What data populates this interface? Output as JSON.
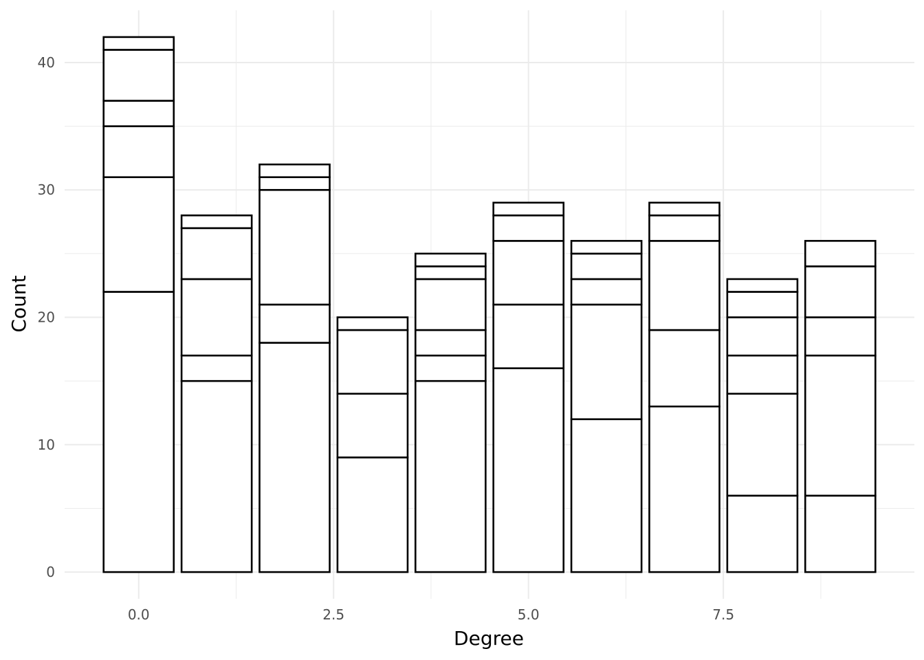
{
  "chart_data": {
    "type": "bar",
    "stacked": true,
    "title": "",
    "xlabel": "Degree",
    "ylabel": "Count",
    "xlim": [
      -0.95,
      9.95
    ],
    "ylim": [
      -2.1,
      44.1
    ],
    "x_ticks": [
      {
        "value": 0.0,
        "label": "0.0"
      },
      {
        "value": 2.5,
        "label": "2.5"
      },
      {
        "value": 5.0,
        "label": "5.0"
      },
      {
        "value": 7.5,
        "label": "7.5"
      }
    ],
    "y_ticks": [
      {
        "value": 0,
        "label": "0"
      },
      {
        "value": 10,
        "label": "10"
      },
      {
        "value": 20,
        "label": "20"
      },
      {
        "value": 30,
        "label": "30"
      },
      {
        "value": 40,
        "label": "40"
      }
    ],
    "x": [
      0,
      1,
      2,
      3,
      4,
      5,
      6,
      7,
      8,
      9
    ],
    "stack_boundaries": [
      [
        22,
        31,
        35,
        37,
        41,
        42
      ],
      [
        15,
        17,
        23,
        27,
        28
      ],
      [
        18,
        21,
        30,
        31,
        32
      ],
      [
        9,
        14,
        19,
        20
      ],
      [
        15,
        17,
        19,
        23,
        24,
        25
      ],
      [
        16,
        21,
        26,
        28,
        29
      ],
      [
        12,
        21,
        23,
        25,
        26
      ],
      [
        13,
        19,
        26,
        28,
        29
      ],
      [
        6,
        14,
        17,
        20,
        22,
        23
      ],
      [
        6,
        17,
        20,
        24,
        26
      ]
    ],
    "totals": [
      42,
      28,
      32,
      20,
      25,
      29,
      26,
      29,
      23,
      26
    ],
    "bar_fill": "#ffffff",
    "bar_stroke": "#000000",
    "grid": true,
    "legend": "none",
    "theme": "minimal"
  }
}
